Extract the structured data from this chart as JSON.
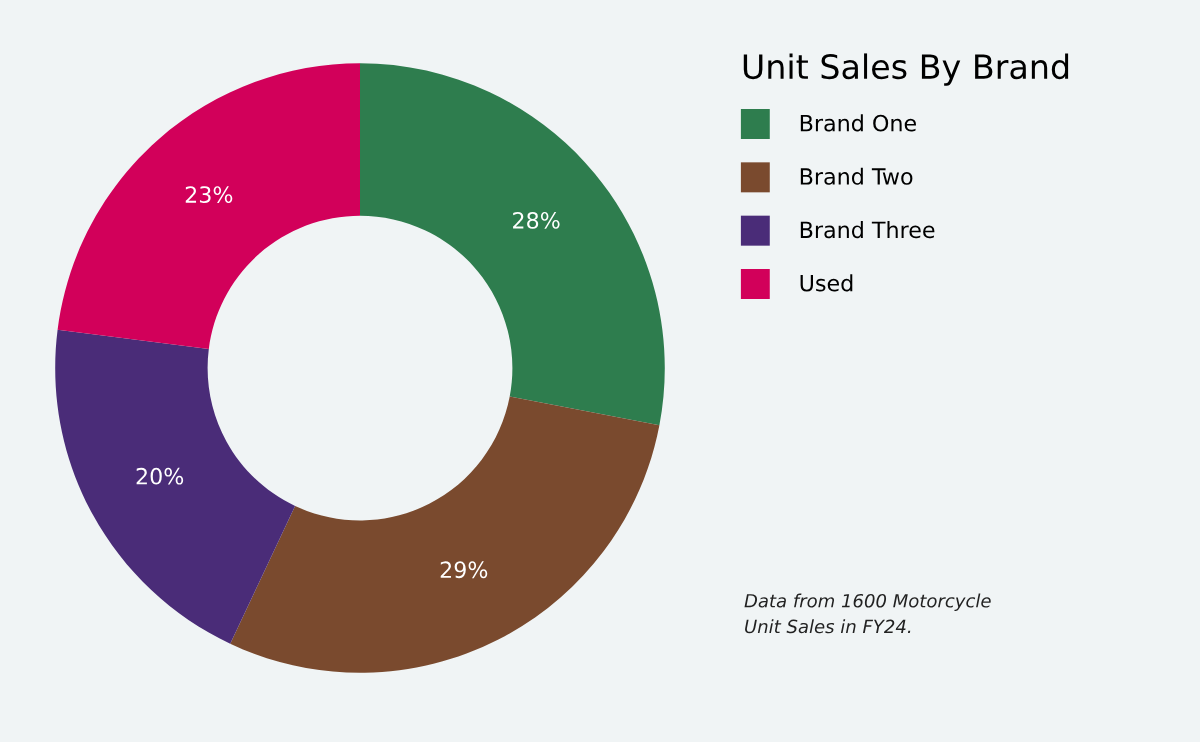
{
  "chart_data": {
    "type": "donut",
    "legend_title": "Unit Sales By Brand",
    "categories": [
      "Brand One",
      "Brand Two",
      "Brand Three",
      "Used"
    ],
    "values": [
      28,
      29,
      20,
      23
    ],
    "value_labels": [
      "28%",
      "29%",
      "20%",
      "23%"
    ],
    "colors": [
      "#2e7d4e",
      "#7a4a2e",
      "#4a2c78",
      "#d2005a"
    ],
    "legend": "right",
    "annotations": [
      "Data from 1600 Motorcycle\nUnit Sales in FY24."
    ]
  }
}
